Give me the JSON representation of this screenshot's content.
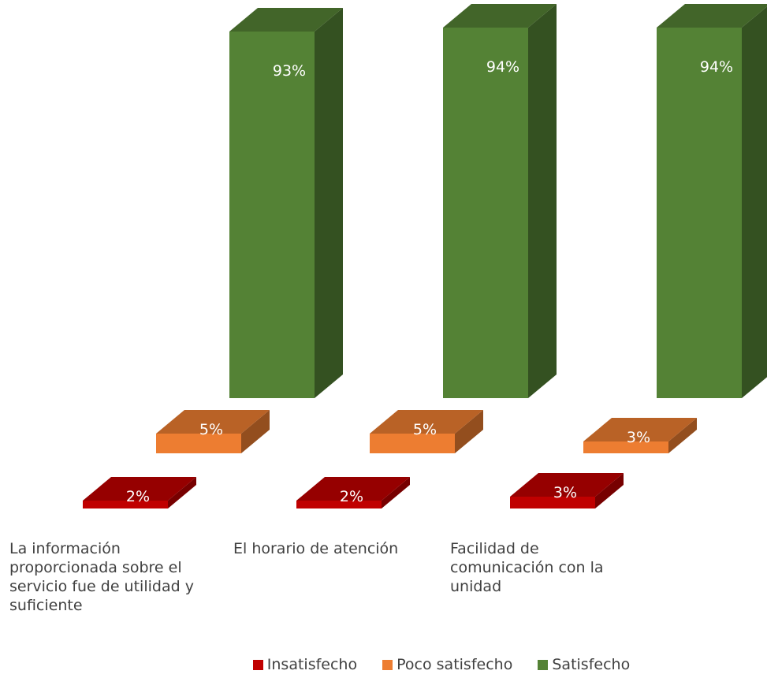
{
  "chart_data": {
    "type": "bar",
    "categories": [
      "La información proporcionada sobre el servicio fue de utilidad y suficiente",
      "El horario de atención",
      "Facilidad de comunicación con la unidad"
    ],
    "series": [
      {
        "name": "Insatisfecho",
        "values": [
          2,
          2,
          3
        ],
        "labels": [
          "2%",
          "2%",
          "3%"
        ],
        "color": "#c00000"
      },
      {
        "name": "Poco satisfecho",
        "values": [
          5,
          5,
          3
        ],
        "labels": [
          "5%",
          "5%",
          "3%"
        ],
        "color": "#ed7d31"
      },
      {
        "name": "Satisfecho",
        "values": [
          93,
          94,
          94
        ],
        "labels": [
          "93%",
          "94%",
          "94%"
        ],
        "color": "#548235"
      }
    ],
    "title": "",
    "xlabel": "",
    "ylabel": "",
    "style": "3d-column",
    "legend_position": "bottom",
    "grid": false
  }
}
